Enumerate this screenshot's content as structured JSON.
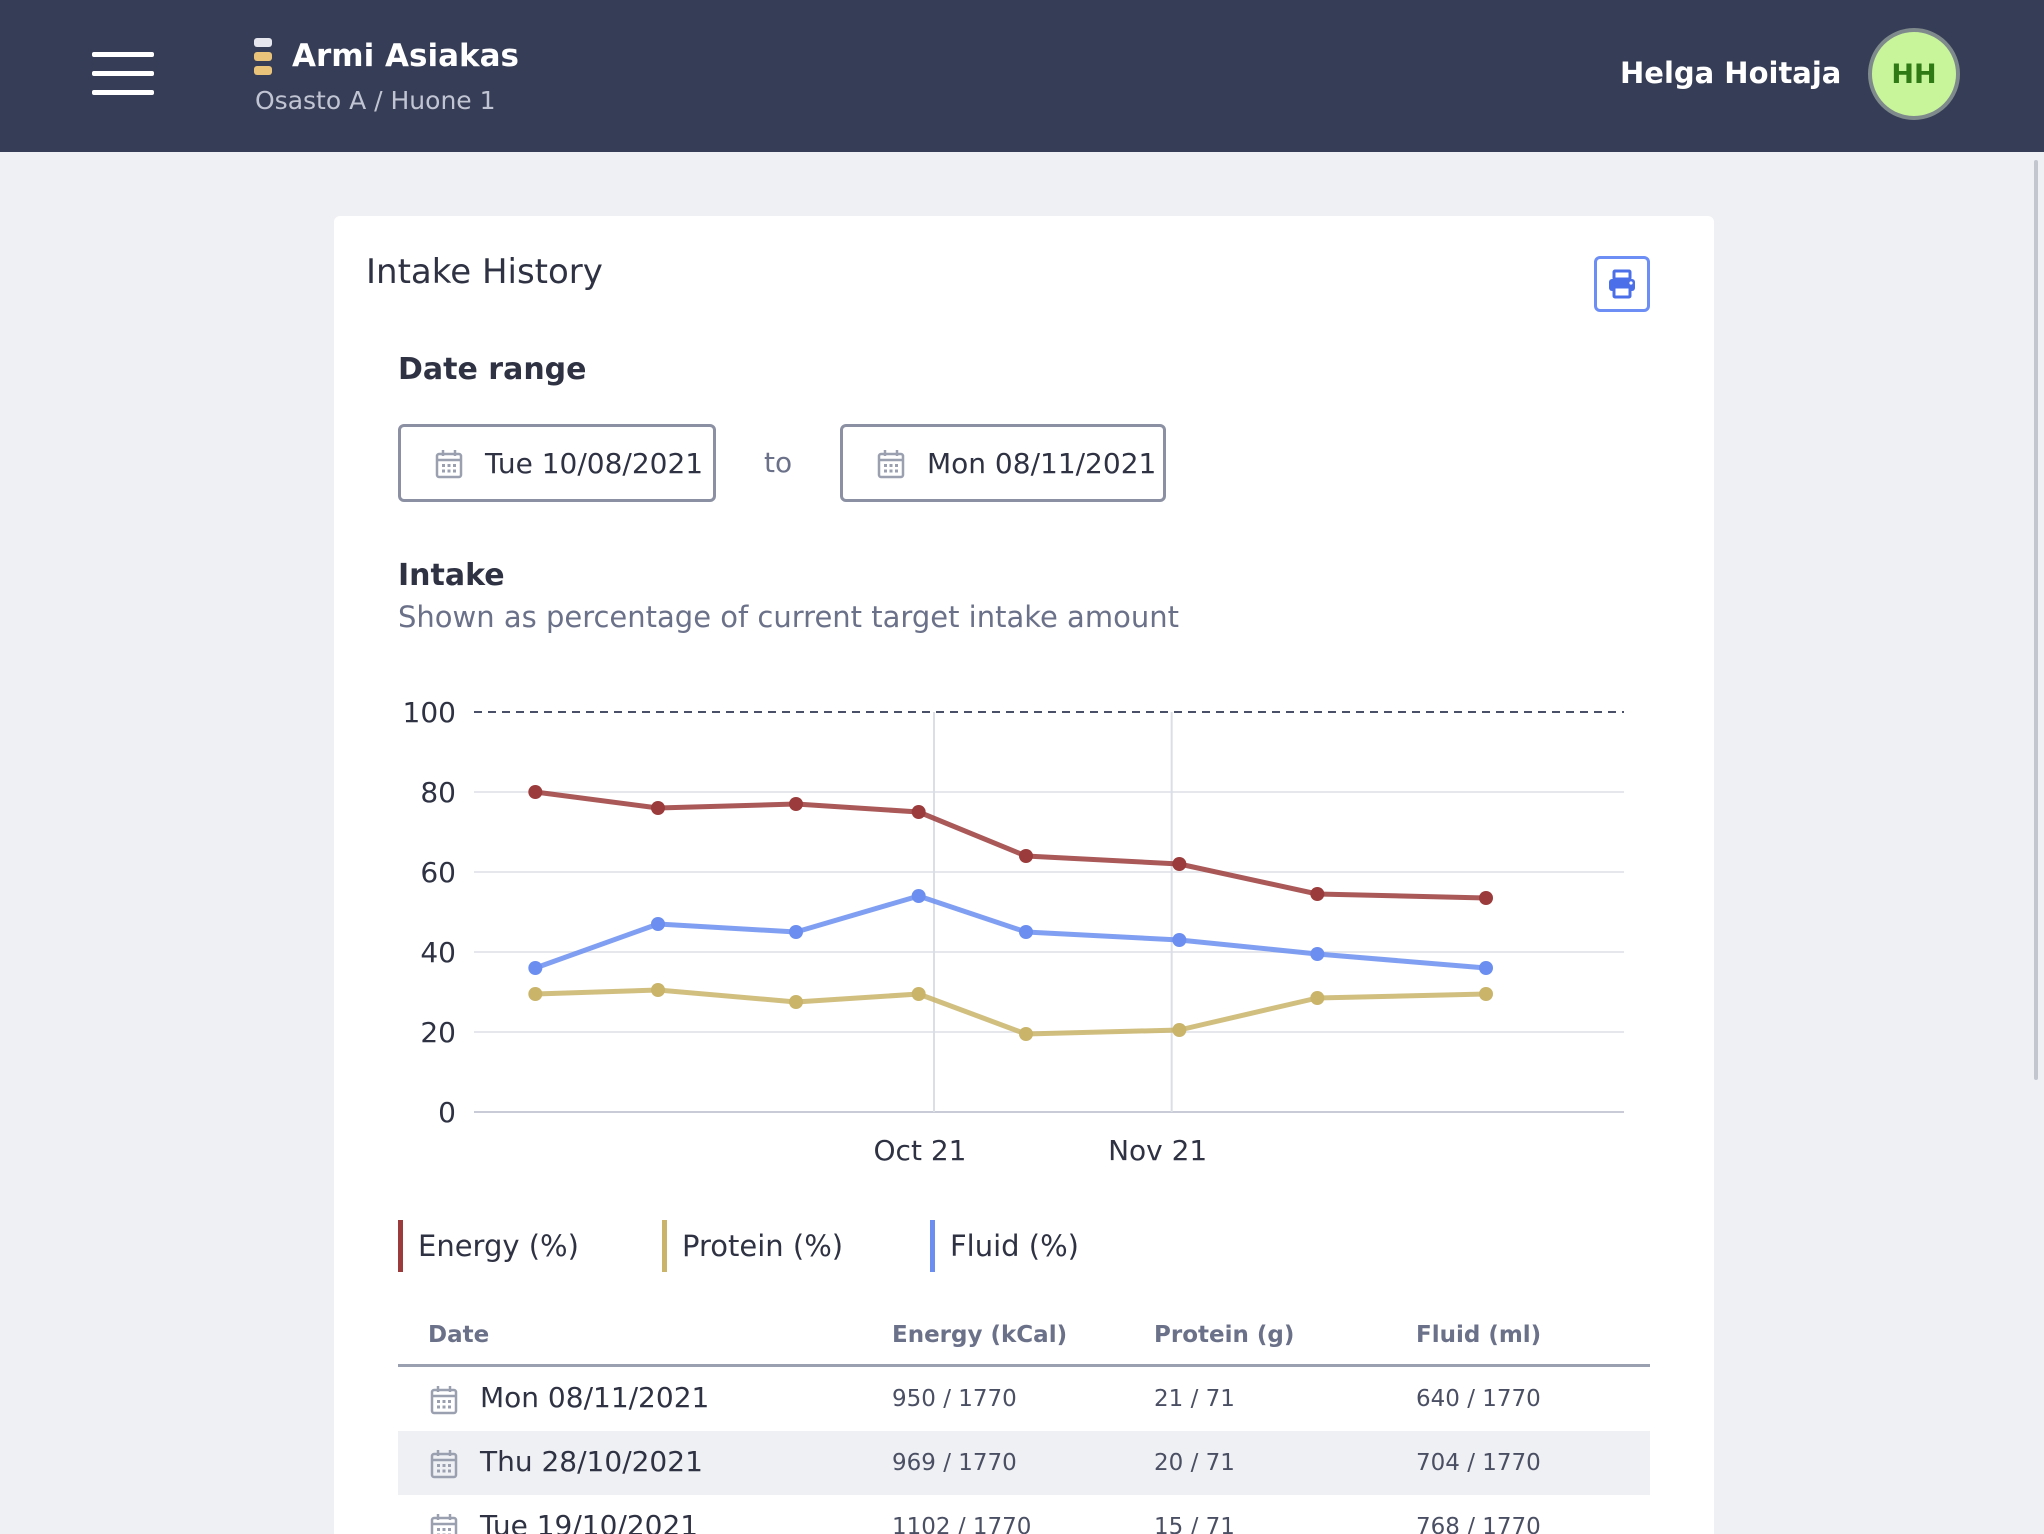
{
  "header": {
    "patient_name": "Armi Asiakas",
    "patient_location": "Osasto A / Huone 1",
    "user_name": "Helga Hoitaja",
    "user_initials": "HH"
  },
  "card": {
    "title": "Intake History",
    "print_icon": "printer-icon",
    "date_range_label": "Date range",
    "date_from": "Tue 10/08/2021",
    "to_label": "to",
    "date_to": "Mon 08/11/2021",
    "intake_label": "Intake",
    "intake_subtitle": "Shown as percentage of current target intake amount"
  },
  "chart_data": {
    "type": "line",
    "x": [
      "2021-08-10",
      "2021-08-26",
      "2021-09-13",
      "2021-09-29",
      "2021-10-13",
      "2021-11-02",
      "2021-11-20",
      "2021-12-12"
    ],
    "x_ticks": [
      {
        "date": "2021-10-01",
        "label": "Oct 21"
      },
      {
        "date": "2021-11-01",
        "label": "Nov 21"
      }
    ],
    "ylim": [
      0,
      100
    ],
    "y_ticks": [
      0,
      20,
      40,
      60,
      80,
      100
    ],
    "reference_line": 100,
    "grid": true,
    "legend_position": "bottom",
    "series": [
      {
        "name": "Energy (%)",
        "color": "#9b3b3b",
        "values": [
          80,
          76,
          77,
          75,
          64,
          62,
          54.5,
          53.5
        ]
      },
      {
        "name": "Protein (%)",
        "color": "#c9b46a",
        "values": [
          29.5,
          30.5,
          27.5,
          29.5,
          19.5,
          20.5,
          28.5,
          29.5
        ]
      },
      {
        "name": "Fluid (%)",
        "color": "#6b8ef0",
        "values": [
          36,
          47,
          45,
          54,
          45,
          43,
          39.5,
          36
        ]
      }
    ]
  },
  "table": {
    "headers": [
      "Date",
      "Energy (kCal)",
      "Protein (g)",
      "Fluid (ml)"
    ],
    "rows": [
      {
        "date": "Mon 08/11/2021",
        "energy": "950 / 1770",
        "protein": "21 / 71",
        "fluid": "640 / 1770"
      },
      {
        "date": "Thu 28/10/2021",
        "energy": "969 / 1770",
        "protein": "20 / 71",
        "fluid": "704 / 1770"
      },
      {
        "date": "Tue 19/10/2021",
        "energy": "1102 / 1770",
        "protein": "15 / 71",
        "fluid": "768 / 1770"
      }
    ]
  }
}
